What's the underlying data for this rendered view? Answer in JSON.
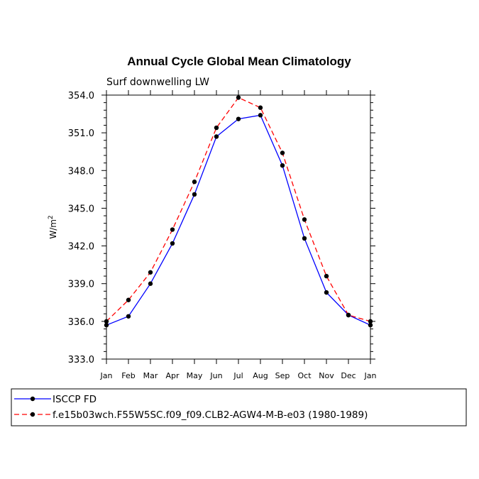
{
  "chart_data": {
    "type": "line",
    "title": "Annual Cycle Global Mean Climatology",
    "subtitle": "Surf downwelling LW",
    "ylabel": "W/m",
    "ylabel_sup": "2",
    "xlabel": "",
    "ylim": [
      333.0,
      354.0
    ],
    "yticks": [
      "333.0",
      "336.0",
      "339.0",
      "342.0",
      "345.0",
      "348.0",
      "351.0",
      "354.0"
    ],
    "categories": [
      "Jan",
      "Feb",
      "Mar",
      "Apr",
      "May",
      "Jun",
      "Jul",
      "Aug",
      "Sep",
      "Oct",
      "Nov",
      "Dec",
      "Jan"
    ],
    "series": [
      {
        "name": "ISCCP FD",
        "color": "#0000ff",
        "dash": "solid",
        "values": [
          335.7,
          336.4,
          339.0,
          342.2,
          346.1,
          350.7,
          352.1,
          352.4,
          348.4,
          342.6,
          338.3,
          336.5,
          335.7
        ]
      },
      {
        "name": "f.e15b03wch.F55W5SC.f09_f09.CLB2-AGW4-M-B-e03 (1980-1989)",
        "color": "#ff0000",
        "dash": "dashed",
        "values": [
          336.0,
          337.7,
          339.9,
          343.3,
          347.1,
          351.4,
          353.8,
          353.0,
          349.4,
          344.1,
          339.6,
          336.5,
          336.0
        ]
      }
    ]
  },
  "legend": {
    "items": [
      {
        "label": "ISCCP FD"
      },
      {
        "label": "f.e15b03wch.F55W5SC.f09_f09.CLB2-AGW4-M-B-e03 (1980-1989)"
      }
    ]
  }
}
